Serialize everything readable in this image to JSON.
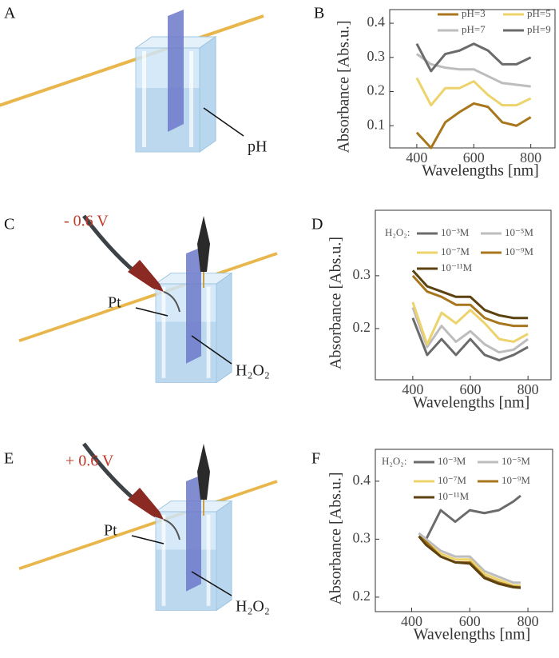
{
  "illustrations": [
    {
      "label": "A",
      "annotations": [
        "pH"
      ]
    },
    {
      "label": "C",
      "voltage": "- 0.6 V",
      "annotations": [
        "Pt",
        "H₂O₂"
      ]
    },
    {
      "label": "E",
      "voltage": "+ 0.6 V",
      "annotations": [
        "Pt",
        "H₂O₂"
      ]
    }
  ],
  "chart_data": [
    {
      "type": "line",
      "label": "B",
      "xlabel": "Wavelengths [nm]",
      "ylabel": "Absorbance [Abs.u.]",
      "xlim": [
        305,
        885
      ],
      "xticks": [
        400,
        600,
        800
      ],
      "ylim": [
        0.035,
        0.44
      ],
      "yticks": [
        0.1,
        0.2,
        0.3,
        0.4
      ],
      "x": [
        400,
        450,
        500,
        550,
        600,
        650,
        700,
        750,
        800
      ],
      "series": [
        {
          "name": "pH=3",
          "color": "#a8761c",
          "values": [
            0.08,
            0.035,
            0.11,
            0.14,
            0.165,
            0.155,
            0.11,
            0.1,
            0.125
          ]
        },
        {
          "name": "pH=5",
          "color": "#ecd36c",
          "values": [
            0.24,
            0.16,
            0.21,
            0.21,
            0.23,
            0.19,
            0.16,
            0.16,
            0.18
          ]
        },
        {
          "name": "pH=7",
          "color": "#bdbdbd",
          "values": [
            0.31,
            0.28,
            0.27,
            0.265,
            0.265,
            0.245,
            0.225,
            0.22,
            0.215
          ]
        },
        {
          "name": "pH=9",
          "color": "#6b6b6b",
          "values": [
            0.34,
            0.26,
            0.31,
            0.32,
            0.34,
            0.32,
            0.28,
            0.28,
            0.3
          ]
        }
      ]
    },
    {
      "type": "line",
      "label": "D",
      "xlabel": "Wavelengths [nm]",
      "ylabel": "Absorbance [Abs.u.]",
      "legend_title": "H₂O₂:",
      "xlim": [
        270,
        880
      ],
      "xticks": [
        400,
        600,
        800
      ],
      "ylim": [
        0.103,
        0.424
      ],
      "yticks": [
        0.2,
        0.3
      ],
      "x": [
        400,
        450,
        500,
        550,
        600,
        650,
        700,
        750,
        800
      ],
      "series": [
        {
          "name": "10⁻³M",
          "color": "#6b6b6b",
          "values": [
            0.22,
            0.15,
            0.18,
            0.15,
            0.18,
            0.15,
            0.14,
            0.15,
            0.165
          ]
        },
        {
          "name": "10⁻⁵M",
          "color": "#bdbdbd",
          "values": [
            0.24,
            0.165,
            0.205,
            0.175,
            0.195,
            0.17,
            0.155,
            0.16,
            0.18
          ]
        },
        {
          "name": "10⁻⁷M",
          "color": "#ecd36c",
          "values": [
            0.25,
            0.17,
            0.23,
            0.21,
            0.235,
            0.21,
            0.18,
            0.175,
            0.19
          ]
        },
        {
          "name": "10⁻⁹M",
          "color": "#a8761c",
          "values": [
            0.3,
            0.27,
            0.26,
            0.245,
            0.245,
            0.22,
            0.21,
            0.205,
            0.205
          ]
        },
        {
          "name": "10⁻¹¹M",
          "color": "#5c4210",
          "values": [
            0.31,
            0.28,
            0.27,
            0.26,
            0.26,
            0.235,
            0.225,
            0.22,
            0.22
          ]
        }
      ]
    },
    {
      "type": "line",
      "label": "F",
      "xlabel": "Wavelengths [nm]",
      "ylabel": "Absorbance [Abs.u.]",
      "legend_title": "H₂O₂:",
      "xlim": [
        275,
        885
      ],
      "xticks": [
        400,
        600,
        800
      ],
      "ylim": [
        0.175,
        0.455
      ],
      "yticks": [
        0.2,
        0.3,
        0.4
      ],
      "x": [
        425,
        450,
        500,
        550,
        600,
        650,
        700,
        750,
        775
      ],
      "series": [
        {
          "name": "10⁻³M",
          "color": "#6b6b6b",
          "values": [
            0.31,
            0.3,
            0.35,
            0.33,
            0.35,
            0.345,
            0.35,
            0.365,
            0.375
          ]
        },
        {
          "name": "10⁻⁵M",
          "color": "#bdbdbd",
          "values": [
            0.31,
            0.3,
            0.28,
            0.27,
            0.27,
            0.245,
            0.235,
            0.225,
            0.225
          ]
        },
        {
          "name": "10⁻⁷M",
          "color": "#ecd36c",
          "values": [
            0.305,
            0.295,
            0.275,
            0.265,
            0.265,
            0.24,
            0.23,
            0.22,
            0.22
          ]
        },
        {
          "name": "10⁻⁹M",
          "color": "#a8761c",
          "values": [
            0.305,
            0.295,
            0.27,
            0.26,
            0.26,
            0.235,
            0.225,
            0.218,
            0.217
          ]
        },
        {
          "name": "10⁻¹¹M",
          "color": "#5c4210",
          "values": [
            0.305,
            0.29,
            0.27,
            0.26,
            0.258,
            0.233,
            0.223,
            0.217,
            0.216
          ]
        }
      ]
    }
  ]
}
